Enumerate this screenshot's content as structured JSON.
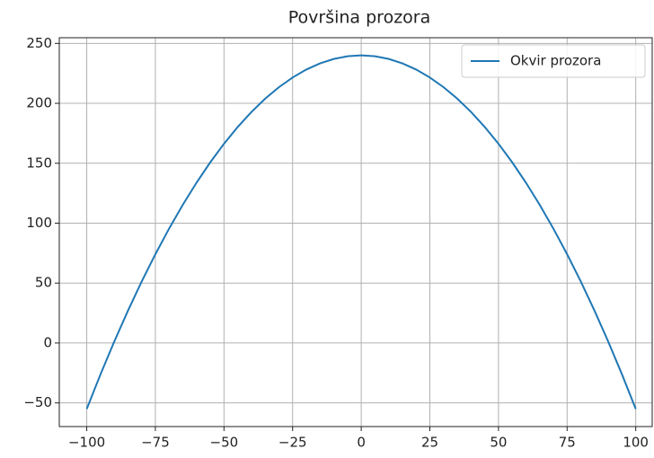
{
  "chart_data": {
    "type": "line",
    "title": "Površina prozora",
    "x": [
      -100,
      -95,
      -90,
      -85,
      -80,
      -75,
      -70,
      -65,
      -60,
      -55,
      -50,
      -45,
      -40,
      -35,
      -30,
      -25,
      -20,
      -15,
      -10,
      -5,
      0,
      5,
      10,
      15,
      20,
      25,
      30,
      35,
      40,
      45,
      50,
      55,
      60,
      65,
      70,
      75,
      80,
      85,
      90,
      95,
      100
    ],
    "series": [
      {
        "name": "Okvir prozora",
        "color": "#1f77b4",
        "values": [
          -55,
          -26.24,
          1.05,
          26.86,
          51.2,
          74.06,
          95.45,
          115.36,
          133.8,
          150.76,
          166.25,
          180.26,
          192.8,
          203.86,
          213.45,
          221.56,
          228.2,
          233.36,
          237.05,
          239.26,
          240,
          239.26,
          237.05,
          233.36,
          228.2,
          221.56,
          213.45,
          203.86,
          192.8,
          180.26,
          166.25,
          150.76,
          133.8,
          115.36,
          95.45,
          74.06,
          51.2,
          26.86,
          1.05,
          -26.24,
          -55
        ]
      }
    ],
    "xlim": [
      -110,
      106
    ],
    "ylim": [
      -69.75,
      254.75
    ],
    "xticks": [
      {
        "value": -100,
        "label": "−100"
      },
      {
        "value": -75,
        "label": "−75"
      },
      {
        "value": -50,
        "label": "−50"
      },
      {
        "value": -25,
        "label": "−25"
      },
      0,
      25,
      50,
      75,
      100
    ],
    "yticks": [
      {
        "value": -50,
        "label": "−50"
      },
      0,
      50,
      100,
      150,
      200,
      250
    ],
    "grid": true,
    "legend": "upper right"
  }
}
